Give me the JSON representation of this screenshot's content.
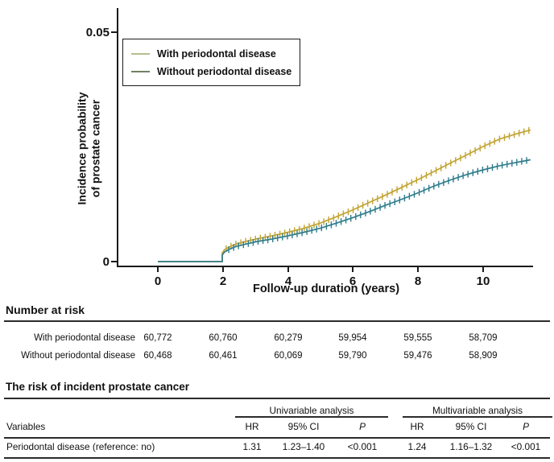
{
  "chart": {
    "y_axis_label_line1": "Incidence probability",
    "y_axis_label_line2": "of prostate cancer",
    "x_axis_label": "Follow-up duration (years)",
    "y_ticks": [
      "0.05",
      "0"
    ],
    "x_ticks": [
      "0",
      "2",
      "4",
      "6",
      "8",
      "10"
    ],
    "legend": [
      {
        "label": "With periodontal disease",
        "swatch_color": "#b9bc8f"
      },
      {
        "label": "Without periodontal disease",
        "swatch_color": "#6f8163"
      }
    ]
  },
  "chart_data": {
    "type": "line",
    "title": "",
    "xlabel": "Follow-up duration (years)",
    "ylabel": "Incidence probability of prostate cancer",
    "xlim": [
      0,
      11.6
    ],
    "ylim": [
      0,
      0.05
    ],
    "x_tick_values": [
      0,
      2,
      4,
      6,
      8,
      10
    ],
    "y_tick_values": [
      0,
      0.05
    ],
    "legend_position": "upper-left",
    "grid": false,
    "series": [
      {
        "name": "With periodontal disease",
        "color": "#c2a433",
        "censor_start": 2.1,
        "censor_end": 11.4,
        "censor_step": 0.15,
        "points": [
          [
            0,
            0
          ],
          [
            1.98,
            0
          ],
          [
            1.98,
            0.0019
          ],
          [
            2.05,
            0.0026
          ],
          [
            2.2,
            0.0032
          ],
          [
            2.4,
            0.0038
          ],
          [
            2.7,
            0.0044
          ],
          [
            3.0,
            0.0049
          ],
          [
            3.5,
            0.0056
          ],
          [
            4.0,
            0.0064
          ],
          [
            4.5,
            0.0073
          ],
          [
            5.0,
            0.0084
          ],
          [
            5.5,
            0.0098
          ],
          [
            6.0,
            0.0113
          ],
          [
            6.5,
            0.0129
          ],
          [
            7.0,
            0.0145
          ],
          [
            7.5,
            0.0162
          ],
          [
            8.0,
            0.0179
          ],
          [
            8.5,
            0.0197
          ],
          [
            9.0,
            0.0215
          ],
          [
            9.5,
            0.0233
          ],
          [
            10.0,
            0.0251
          ],
          [
            10.5,
            0.0267
          ],
          [
            11.0,
            0.0278
          ],
          [
            11.45,
            0.0287
          ]
        ]
      },
      {
        "name": "Without periodontal disease",
        "color": "#2f7d8c",
        "censor_start": 2.18,
        "censor_end": 11.4,
        "censor_step": 0.15,
        "points": [
          [
            0,
            0
          ],
          [
            1.98,
            0
          ],
          [
            1.98,
            0.0014
          ],
          [
            2.05,
            0.0021
          ],
          [
            2.2,
            0.0027
          ],
          [
            2.4,
            0.0033
          ],
          [
            2.7,
            0.0038
          ],
          [
            3.0,
            0.0043
          ],
          [
            3.5,
            0.0049
          ],
          [
            4.0,
            0.0056
          ],
          [
            4.5,
            0.0064
          ],
          [
            5.0,
            0.0073
          ],
          [
            5.5,
            0.0084
          ],
          [
            6.0,
            0.0096
          ],
          [
            6.5,
            0.0109
          ],
          [
            7.0,
            0.0123
          ],
          [
            7.5,
            0.0136
          ],
          [
            8.0,
            0.015
          ],
          [
            8.5,
            0.0165
          ],
          [
            9.0,
            0.0178
          ],
          [
            9.5,
            0.019
          ],
          [
            10.0,
            0.02
          ],
          [
            10.5,
            0.0209
          ],
          [
            11.0,
            0.0216
          ],
          [
            11.45,
            0.0222
          ]
        ]
      }
    ]
  },
  "number_at_risk": {
    "title": "Number at risk",
    "rows": [
      {
        "label": "With periodontal disease",
        "counts": [
          "60,772",
          "60,760",
          "60,279",
          "59,954",
          "59,555",
          "58,709"
        ]
      },
      {
        "label": "Without periodontal disease",
        "counts": [
          "60,468",
          "60,461",
          "60,069",
          "59,790",
          "59,476",
          "58,909"
        ]
      }
    ]
  },
  "risk_table": {
    "title": "The risk of incident prostate cancer",
    "group_headers": [
      "Univariable analysis",
      "Multivariable analysis"
    ],
    "variables_header": "Variables",
    "col_headers": [
      "HR",
      "95% CI",
      "P",
      "HR",
      "95% CI",
      "P"
    ],
    "rows": [
      {
        "variable": "Periodontal disease (reference: no)",
        "values": [
          "1.31",
          "1.23–1.40",
          "<0.001",
          "1.24",
          "1.16–1.32",
          "<0.001"
        ]
      }
    ]
  }
}
